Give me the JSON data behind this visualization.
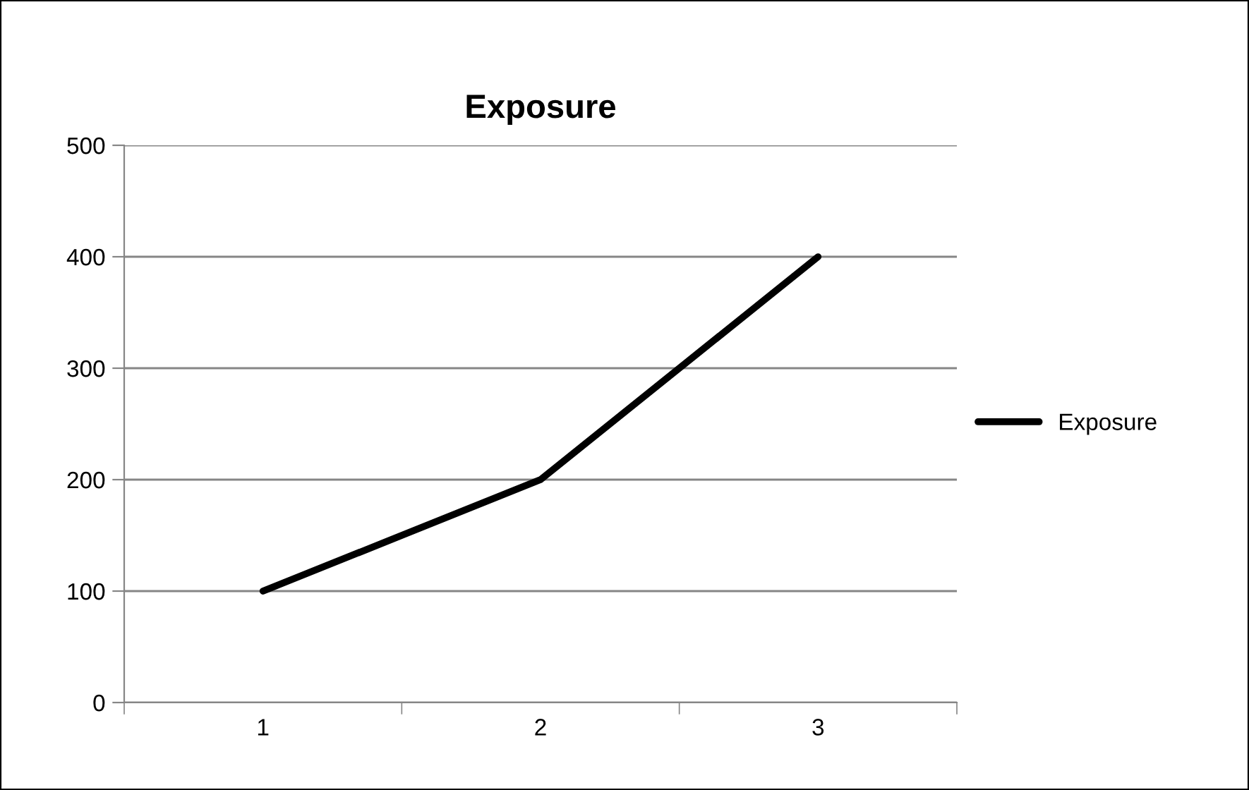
{
  "chart_data": {
    "type": "line",
    "title": "Exposure",
    "categories": [
      "1",
      "2",
      "3"
    ],
    "series": [
      {
        "name": "Exposure",
        "color": "#000000",
        "values": [
          100,
          200,
          400
        ]
      }
    ],
    "ylim": [
      0,
      500
    ],
    "yticks": [
      0,
      100,
      200,
      300,
      400,
      500
    ],
    "grid": "y",
    "legend": "right",
    "marker": "none",
    "line_style": "solid"
  }
}
